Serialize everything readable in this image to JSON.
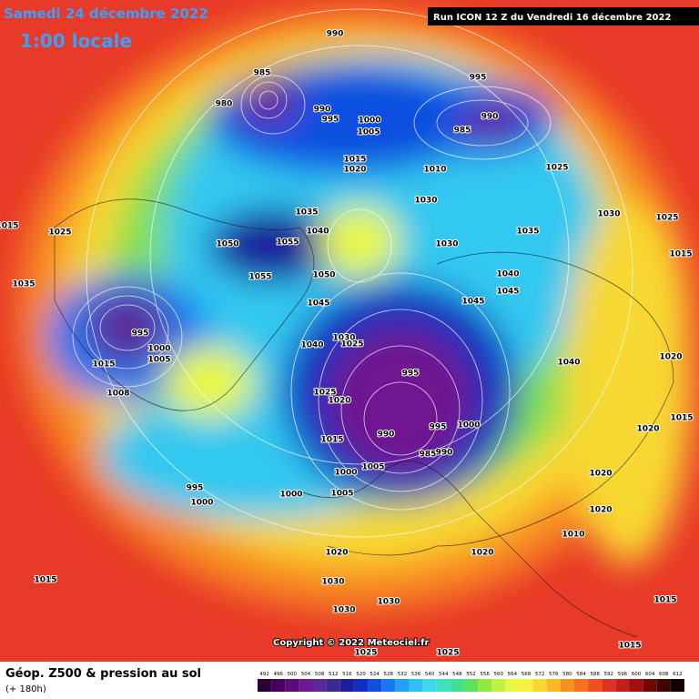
{
  "header": {
    "date": "Samedi 24 décembre 2022",
    "time": "1:00 locale",
    "run": "Run ICON 12 Z du Vendredi 16 décembre 2022"
  },
  "copyright": "Copyright © 2022 Meteociel.fr",
  "footer": {
    "title": "Géop. Z500 & pression au sol",
    "lead": "(+ 180h)"
  },
  "scale": {
    "values": [
      492,
      496,
      500,
      504,
      508,
      512,
      516,
      520,
      524,
      528,
      532,
      536,
      540,
      544,
      548,
      552,
      556,
      560,
      564,
      568,
      572,
      576,
      580,
      584,
      588,
      592,
      596,
      600,
      604,
      608,
      612
    ],
    "colors": [
      "#2a0033",
      "#44005a",
      "#5e0a78",
      "#701890",
      "#5a2a9a",
      "#3a2a8a",
      "#1e1e9a",
      "#1030c0",
      "#1050e0",
      "#1878f0",
      "#20a0f8",
      "#30c0f8",
      "#40d8e8",
      "#40e0c0",
      "#40e090",
      "#60e060",
      "#90e840",
      "#c0f040",
      "#e8f840",
      "#f8f040",
      "#f8d830",
      "#f8b828",
      "#f89020",
      "#f87020",
      "#f05020",
      "#e03020",
      "#c02018",
      "#a01010",
      "#700808",
      "#400404",
      "#100000"
    ]
  },
  "labels": [
    "990",
    "985",
    "980",
    "990",
    "995",
    "1000",
    "1005",
    "995",
    "990",
    "985",
    "1015",
    "1020",
    "1010",
    "1025",
    "1030",
    "1035",
    "1050",
    "1055",
    "1040",
    "1030",
    "1035",
    "1040",
    "1045",
    "1045",
    "1050",
    "1055",
    "1045",
    "995",
    "1000",
    "1005",
    "1015",
    "1008",
    "1030",
    "1025",
    "1040",
    "995",
    "1025",
    "1020",
    "990",
    "995",
    "1000",
    "985",
    "990",
    "1015",
    "1000",
    "1005",
    "1005",
    "995",
    "1000",
    "1000",
    "1020",
    "1015",
    "1030",
    "1030",
    "1030",
    "1020",
    "1010",
    "1020",
    "1025",
    "1025",
    "1035",
    "1015",
    "1025",
    "1025",
    "1015",
    "1020",
    "1015",
    "1015",
    "1030",
    "1040",
    "1020",
    "1020",
    "1015"
  ]
}
